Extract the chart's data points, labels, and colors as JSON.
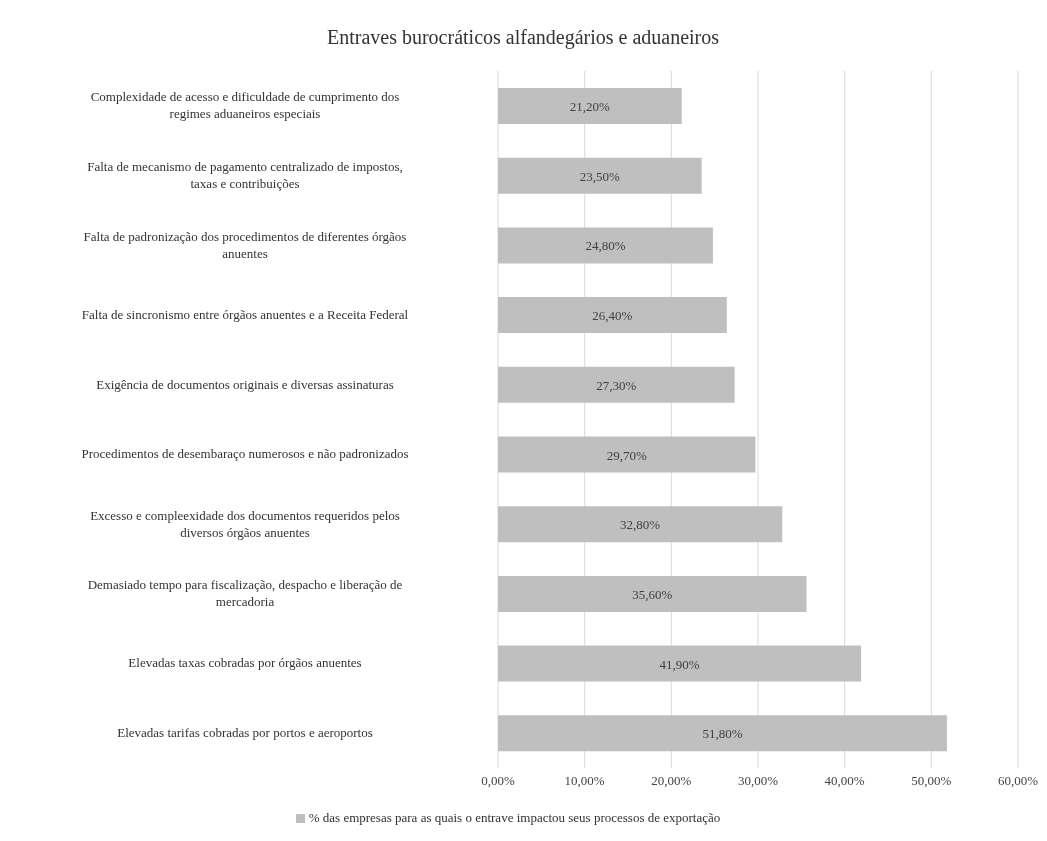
{
  "chart_data": {
    "type": "bar",
    "orientation": "horizontal",
    "title": "Entraves burocráticos alfandegários e aduaneiros",
    "categories": [
      "Complexidade de acesso e dificuldade de cumprimento dos regimes aduaneiros especiais",
      "Falta de mecanismo de pagamento centralizado de impostos, taxas e contribuições",
      "Falta de padronização dos procedimentos de diferentes órgãos anuentes",
      "Falta de sincronismo entre órgãos anuentes e a Receita Federal",
      "Exigência de documentos originais e diversas assinaturas",
      "Procedimentos de desembaraço numerosos e não padronizados",
      "Excesso e compleexidade dos documentos requeridos pelos diversos órgãos anuentes",
      "Demasiado tempo para fiscalização, despacho e liberação de mercadoria",
      "Elevadas taxas cobradas por órgãos anuentes",
      "Elevadas tarifas cobradas por portos e aeroportos"
    ],
    "series": [
      {
        "name": "% das empresas para as quais o entrave impactou seus processos de exportação",
        "color": "#bfbfbf",
        "values": [
          21.2,
          23.5,
          24.8,
          26.4,
          27.3,
          29.7,
          32.8,
          35.6,
          41.9,
          51.8
        ],
        "value_labels": [
          "21,20%",
          "23,50%",
          "24,80%",
          "26,40%",
          "27,30%",
          "29,70%",
          "32,80%",
          "35,60%",
          "41,90%",
          "51,80%"
        ]
      }
    ],
    "xlim": [
      0,
      60
    ],
    "xticks": [
      {
        "value": 0,
        "label": "0,00%"
      },
      {
        "value": 10,
        "label": "10,00%"
      },
      {
        "value": 20,
        "label": "20,00%"
      },
      {
        "value": 30,
        "label": "30,00%"
      },
      {
        "value": 40,
        "label": "40,00%"
      },
      {
        "value": 50,
        "label": "50,00%"
      },
      {
        "value": 60,
        "label": "60,00%"
      }
    ],
    "grid": "x",
    "legend": "bottom"
  }
}
